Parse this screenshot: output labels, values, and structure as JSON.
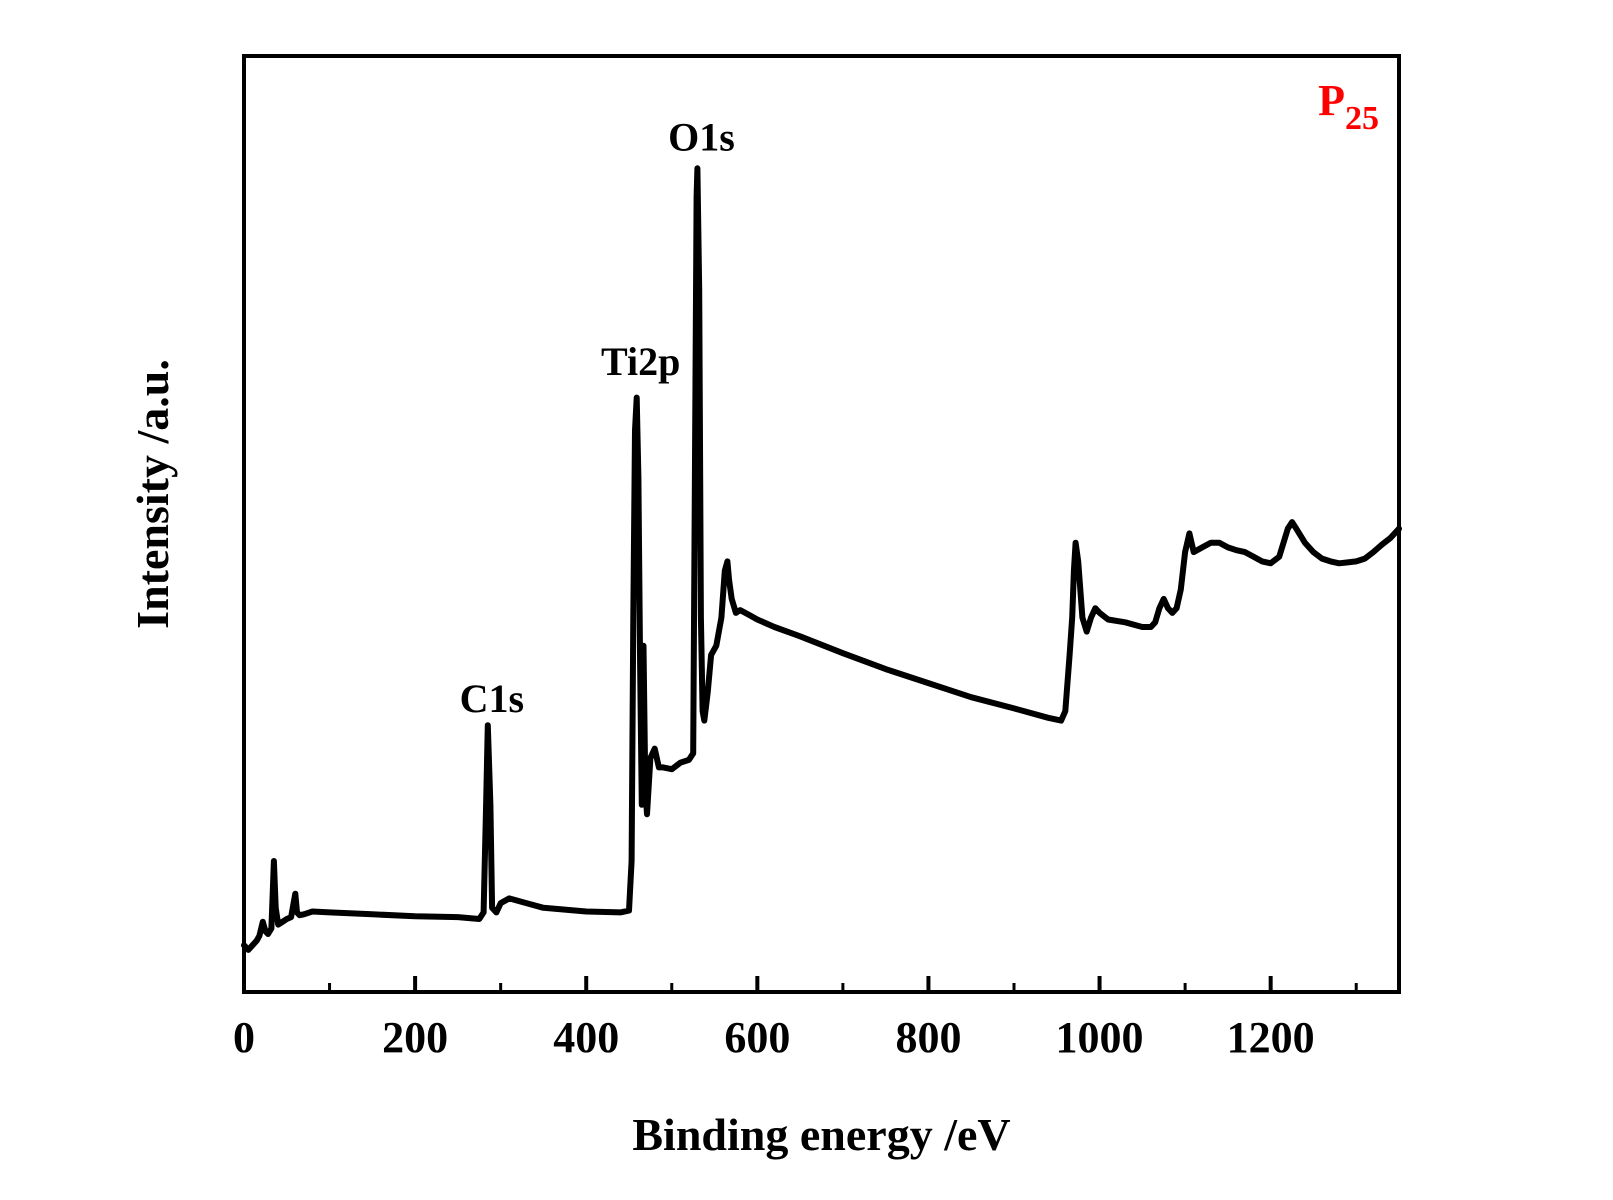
{
  "chart_data": {
    "type": "line",
    "title": "",
    "xlabel": "Binding energy /eV",
    "ylabel": "Intensity /a.u.",
    "xlim": [
      0,
      1350
    ],
    "ylim": [
      0,
      100
    ],
    "x_ticks": [
      0,
      200,
      400,
      600,
      800,
      1000,
      1200
    ],
    "x_minor_ticks": [
      100,
      300,
      500,
      700,
      900,
      1100,
      1300
    ],
    "y_ticks_shown": false,
    "grid": false,
    "legend": "none",
    "sample_label": {
      "main": "P",
      "sub": "25",
      "color": "#ff0000",
      "position": "top-right"
    },
    "annotations": [
      {
        "text": "C1s",
        "x": 285,
        "y": 28
      },
      {
        "text": "Ti2p",
        "x": 459,
        "y": 64
      },
      {
        "text": "O1s",
        "x": 530,
        "y": 88
      }
    ],
    "series": [
      {
        "color": "#000000",
        "points": [
          [
            0,
            5
          ],
          [
            5,
            4.5
          ],
          [
            10,
            5
          ],
          [
            15,
            5.5
          ],
          [
            18,
            6
          ],
          [
            22,
            7.5
          ],
          [
            25,
            6.5
          ],
          [
            28,
            6.2
          ],
          [
            32,
            6.8
          ],
          [
            35,
            14
          ],
          [
            37,
            9
          ],
          [
            40,
            7.2
          ],
          [
            45,
            7.5
          ],
          [
            50,
            7.8
          ],
          [
            55,
            8
          ],
          [
            60,
            10.5
          ],
          [
            62,
            8.5
          ],
          [
            65,
            8.2
          ],
          [
            70,
            8.3
          ],
          [
            80,
            8.6
          ],
          [
            100,
            8.5
          ],
          [
            150,
            8.3
          ],
          [
            200,
            8.1
          ],
          [
            250,
            8
          ],
          [
            275,
            7.8
          ],
          [
            280,
            8.5
          ],
          [
            283,
            20
          ],
          [
            285,
            28.5
          ],
          [
            288,
            20
          ],
          [
            290,
            9
          ],
          [
            295,
            8.5
          ],
          [
            300,
            9.5
          ],
          [
            310,
            10
          ],
          [
            330,
            9.5
          ],
          [
            350,
            9
          ],
          [
            400,
            8.6
          ],
          [
            440,
            8.5
          ],
          [
            450,
            8.7
          ],
          [
            453,
            14
          ],
          [
            455,
            40
          ],
          [
            457,
            60
          ],
          [
            459,
            63.5
          ],
          [
            461,
            55
          ],
          [
            463,
            35
          ],
          [
            465,
            20
          ],
          [
            467,
            37
          ],
          [
            469,
            22
          ],
          [
            471,
            19
          ],
          [
            475,
            25
          ],
          [
            480,
            26
          ],
          [
            485,
            24
          ],
          [
            490,
            24
          ],
          [
            500,
            23.8
          ],
          [
            510,
            24.5
          ],
          [
            520,
            24.8
          ],
          [
            525,
            25.5
          ],
          [
            527,
            55
          ],
          [
            529,
            85
          ],
          [
            530,
            88
          ],
          [
            532,
            75
          ],
          [
            534,
            40
          ],
          [
            536,
            30
          ],
          [
            538,
            29
          ],
          [
            542,
            32
          ],
          [
            546,
            36
          ],
          [
            552,
            37
          ],
          [
            558,
            40
          ],
          [
            562,
            45
          ],
          [
            565,
            46
          ],
          [
            567,
            44
          ],
          [
            570,
            42
          ],
          [
            575,
            40.5
          ],
          [
            580,
            40.8
          ],
          [
            590,
            40.3
          ],
          [
            600,
            39.8
          ],
          [
            620,
            39
          ],
          [
            650,
            38
          ],
          [
            700,
            36.2
          ],
          [
            750,
            34.5
          ],
          [
            800,
            33
          ],
          [
            850,
            31.5
          ],
          [
            900,
            30.3
          ],
          [
            940,
            29.3
          ],
          [
            955,
            29
          ],
          [
            960,
            30
          ],
          [
            965,
            36
          ],
          [
            968,
            40
          ],
          [
            970,
            45
          ],
          [
            972,
            48
          ],
          [
            975,
            46
          ],
          [
            980,
            40
          ],
          [
            985,
            38.5
          ],
          [
            990,
            40
          ],
          [
            995,
            41
          ],
          [
            1000,
            40.5
          ],
          [
            1010,
            39.8
          ],
          [
            1030,
            39.5
          ],
          [
            1050,
            39
          ],
          [
            1060,
            39
          ],
          [
            1065,
            39.5
          ],
          [
            1070,
            41
          ],
          [
            1075,
            42
          ],
          [
            1080,
            41
          ],
          [
            1085,
            40.5
          ],
          [
            1090,
            41
          ],
          [
            1095,
            43
          ],
          [
            1100,
            47
          ],
          [
            1105,
            49
          ],
          [
            1110,
            47
          ],
          [
            1120,
            47.5
          ],
          [
            1130,
            48
          ],
          [
            1140,
            48
          ],
          [
            1150,
            47.5
          ],
          [
            1160,
            47.2
          ],
          [
            1170,
            47
          ],
          [
            1180,
            46.5
          ],
          [
            1190,
            46
          ],
          [
            1200,
            45.8
          ],
          [
            1210,
            46.5
          ],
          [
            1215,
            48
          ],
          [
            1220,
            49.5
          ],
          [
            1225,
            50.2
          ],
          [
            1230,
            49.5
          ],
          [
            1240,
            48
          ],
          [
            1250,
            47
          ],
          [
            1260,
            46.3
          ],
          [
            1270,
            46
          ],
          [
            1280,
            45.8
          ],
          [
            1290,
            45.9
          ],
          [
            1300,
            46
          ],
          [
            1310,
            46.3
          ],
          [
            1320,
            47
          ],
          [
            1330,
            47.8
          ],
          [
            1340,
            48.5
          ],
          [
            1350,
            49.5
          ]
        ]
      }
    ]
  }
}
